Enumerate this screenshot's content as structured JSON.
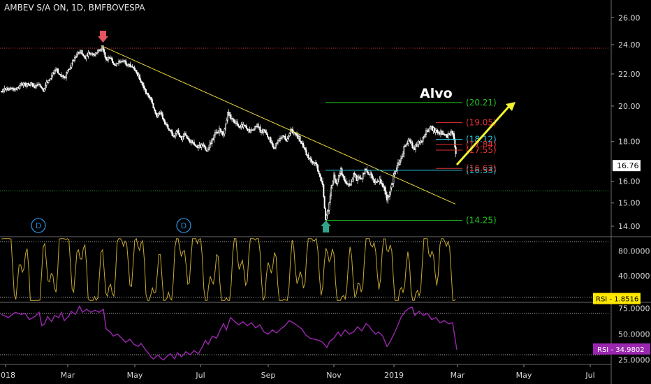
{
  "chart_data": [
    {
      "type": "candlestick",
      "title": "AMBEV S/A ON, 1D, BMFBOVESPA",
      "y_ticks": [
        "26.00",
        "24.00",
        "22.00",
        "20.00",
        "18.00",
        "16.00",
        "15.00",
        "14.00"
      ],
      "y_tick_values": [
        26,
        24,
        22,
        20,
        18,
        16,
        15,
        14
      ],
      "ylim": [
        13.6,
        27.4
      ],
      "last_price_label": "16.76",
      "last_price": 16.76,
      "annotations": {
        "target_text": "Alvo",
        "levels": [
          {
            "label": "(20.21)",
            "value": 20.21,
            "color": "#22c322"
          },
          {
            "label": "(19.05)",
            "value": 19.05,
            "color": "#e03030"
          },
          {
            "label": "(18.12)",
            "value": 18.12,
            "color": "#29c6dc"
          },
          {
            "label": "(17.84)",
            "value": 17.84,
            "color": "#e03030"
          },
          {
            "label": "(17.55)",
            "value": 17.55,
            "color": "#e03030"
          },
          {
            "label": "(16.53)",
            "value": 16.53,
            "color": "#29c6dc"
          },
          {
            "label": "(16.62)",
            "value": 16.62,
            "color": "#e03030"
          },
          {
            "label": "(14.25)",
            "value": 14.25,
            "color": "#22c322"
          }
        ],
        "dividend_markers": [
          "D",
          "D"
        ],
        "high_marker_price": 23.9,
        "low_marker_price": 14.3,
        "resistance_level": 23.75,
        "support_level": 15.55
      },
      "series_close": [
        [
          0,
          20.9
        ],
        [
          6,
          21.0
        ],
        [
          12,
          21.1
        ],
        [
          18,
          20.95
        ],
        [
          24,
          21.2
        ],
        [
          30,
          21.3
        ],
        [
          36,
          21.25
        ],
        [
          42,
          21.35
        ],
        [
          48,
          21.2
        ],
        [
          54,
          21.4
        ],
        [
          60,
          21.0
        ],
        [
          66,
          21.5
        ],
        [
          72,
          21.9
        ],
        [
          78,
          22.3
        ],
        [
          84,
          22.0
        ],
        [
          90,
          21.7
        ],
        [
          96,
          22.3
        ],
        [
          102,
          22.8
        ],
        [
          108,
          23.3
        ],
        [
          114,
          23.5
        ],
        [
          120,
          23.1
        ],
        [
          126,
          23.4
        ],
        [
          132,
          23.2
        ],
        [
          138,
          23.5
        ],
        [
          144,
          23.8
        ],
        [
          150,
          22.9
        ],
        [
          156,
          23.1
        ],
        [
          162,
          22.6
        ],
        [
          168,
          22.8
        ],
        [
          174,
          22.9
        ],
        [
          180,
          22.5
        ],
        [
          186,
          22.6
        ],
        [
          192,
          22.2
        ],
        [
          198,
          21.7
        ],
        [
          204,
          21.0
        ],
        [
          210,
          20.6
        ],
        [
          216,
          20.2
        ],
        [
          222,
          19.4
        ],
        [
          228,
          19.6
        ],
        [
          234,
          19.0
        ],
        [
          240,
          18.7
        ],
        [
          246,
          18.3
        ],
        [
          252,
          18.5
        ],
        [
          258,
          18.2
        ],
        [
          264,
          18.4
        ],
        [
          270,
          18.0
        ],
        [
          276,
          17.9
        ],
        [
          282,
          17.7
        ],
        [
          288,
          17.8
        ],
        [
          294,
          17.6
        ],
        [
          300,
          17.9
        ],
        [
          306,
          18.4
        ],
        [
          312,
          18.6
        ],
        [
          318,
          18.3
        ],
        [
          324,
          19.6
        ],
        [
          330,
          19.2
        ],
        [
          336,
          19.0
        ],
        [
          342,
          18.8
        ],
        [
          348,
          18.9
        ],
        [
          354,
          18.6
        ],
        [
          360,
          18.7
        ],
        [
          366,
          18.9
        ],
        [
          372,
          18.5
        ],
        [
          378,
          18.6
        ],
        [
          384,
          18.1
        ],
        [
          390,
          17.7
        ],
        [
          396,
          18.0
        ],
        [
          402,
          18.3
        ],
        [
          408,
          18.1
        ],
        [
          414,
          18.6
        ],
        [
          420,
          18.4
        ],
        [
          426,
          18.2
        ],
        [
          432,
          17.8
        ],
        [
          438,
          17.2
        ],
        [
          444,
          16.9
        ],
        [
          450,
          16.8
        ],
        [
          456,
          16.3
        ],
        [
          460,
          15.8
        ],
        [
          464,
          14.4
        ],
        [
          468,
          14.6
        ],
        [
          472,
          15.6
        ],
        [
          476,
          16.3
        ],
        [
          480,
          15.9
        ],
        [
          486,
          16.5
        ],
        [
          492,
          16.0
        ],
        [
          498,
          15.8
        ],
        [
          504,
          16.3
        ],
        [
          510,
          16.1
        ],
        [
          516,
          16.2
        ],
        [
          522,
          16.6
        ],
        [
          528,
          16.3
        ],
        [
          534,
          15.9
        ],
        [
          540,
          16.1
        ],
        [
          546,
          15.8
        ],
        [
          552,
          15.1
        ],
        [
          556,
          15.4
        ],
        [
          560,
          16.0
        ],
        [
          564,
          16.5
        ],
        [
          568,
          16.8
        ],
        [
          572,
          17.1
        ],
        [
          578,
          17.8
        ],
        [
          584,
          18.1
        ],
        [
          590,
          17.6
        ],
        [
          596,
          17.9
        ],
        [
          602,
          18.0
        ],
        [
          608,
          18.5
        ],
        [
          614,
          18.8
        ],
        [
          620,
          18.6
        ],
        [
          626,
          18.4
        ],
        [
          632,
          18.5
        ],
        [
          638,
          18.3
        ],
        [
          644,
          18.5
        ],
        [
          648,
          18.2
        ],
        [
          652,
          16.76
        ]
      ]
    },
    {
      "type": "line",
      "label": "RSI",
      "value_label": "1.8516",
      "current": 1.8516,
      "y_ticks": [
        "80.0000",
        "40.0000",
        "0.0000"
      ],
      "y_tick_values": [
        80,
        40,
        0
      ],
      "ylim": [
        -2,
        102
      ],
      "overbought": 95,
      "oversold": 5,
      "line_color": "#c8aa32"
    },
    {
      "type": "line",
      "label": "RSI",
      "value_label": "34.9802",
      "current": 34.9802,
      "y_ticks": [
        "75.0000",
        "50.0000",
        "25.0000"
      ],
      "y_tick_values": [
        75,
        50,
        25
      ],
      "ylim": [
        22,
        80
      ],
      "upper_band": 70,
      "lower_band": 30,
      "line_color": "#9b27b0",
      "series": [
        [
          0,
          69
        ],
        [
          10,
          66
        ],
        [
          20,
          71
        ],
        [
          28,
          69
        ],
        [
          34,
          70
        ],
        [
          40,
          64
        ],
        [
          48,
          67
        ],
        [
          54,
          71
        ],
        [
          58,
          58
        ],
        [
          62,
          60
        ],
        [
          66,
          67
        ],
        [
          72,
          62
        ],
        [
          76,
          68
        ],
        [
          82,
          66
        ],
        [
          86,
          71
        ],
        [
          90,
          63
        ],
        [
          96,
          67
        ],
        [
          100,
          72
        ],
        [
          106,
          69
        ],
        [
          112,
          77
        ],
        [
          116,
          71
        ],
        [
          122,
          74
        ],
        [
          128,
          71
        ],
        [
          134,
          73
        ],
        [
          140,
          71
        ],
        [
          146,
          74
        ],
        [
          150,
          55
        ],
        [
          156,
          52
        ],
        [
          160,
          48
        ],
        [
          166,
          50
        ],
        [
          172,
          46
        ],
        [
          178,
          42
        ],
        [
          184,
          45
        ],
        [
          190,
          40
        ],
        [
          196,
          38
        ],
        [
          200,
          41
        ],
        [
          206,
          35
        ],
        [
          210,
          32
        ],
        [
          214,
          28
        ],
        [
          218,
          26
        ],
        [
          224,
          30
        ],
        [
          228,
          27
        ],
        [
          232,
          25
        ],
        [
          238,
          29
        ],
        [
          242,
          31
        ],
        [
          248,
          26
        ],
        [
          252,
          32
        ],
        [
          258,
          28
        ],
        [
          264,
          33
        ],
        [
          270,
          30
        ],
        [
          276,
          34
        ],
        [
          282,
          31
        ],
        [
          288,
          38
        ],
        [
          292,
          44
        ],
        [
          296,
          40
        ],
        [
          302,
          48
        ],
        [
          308,
          46
        ],
        [
          314,
          55
        ],
        [
          318,
          60
        ],
        [
          322,
          54
        ],
        [
          328,
          66
        ],
        [
          334,
          62
        ],
        [
          340,
          59
        ],
        [
          346,
          62
        ],
        [
          352,
          58
        ],
        [
          358,
          61
        ],
        [
          364,
          56
        ],
        [
          370,
          59
        ],
        [
          376,
          52
        ],
        [
          382,
          50
        ],
        [
          388,
          54
        ],
        [
          394,
          51
        ],
        [
          400,
          55
        ],
        [
          406,
          58
        ],
        [
          412,
          63
        ],
        [
          418,
          61
        ],
        [
          424,
          58
        ],
        [
          430,
          55
        ],
        [
          436,
          49
        ],
        [
          442,
          46
        ],
        [
          448,
          45
        ],
        [
          454,
          44
        ],
        [
          460,
          42
        ],
        [
          466,
          37
        ],
        [
          470,
          43
        ],
        [
          476,
          46
        ],
        [
          482,
          52
        ],
        [
          486,
          48
        ],
        [
          492,
          54
        ],
        [
          498,
          50
        ],
        [
          504,
          52
        ],
        [
          510,
          57
        ],
        [
          516,
          53
        ],
        [
          522,
          60
        ],
        [
          526,
          58
        ],
        [
          530,
          54
        ],
        [
          536,
          50
        ],
        [
          540,
          52
        ],
        [
          546,
          48
        ],
        [
          552,
          38
        ],
        [
          556,
          42
        ],
        [
          562,
          50
        ],
        [
          566,
          56
        ],
        [
          572,
          66
        ],
        [
          578,
          72
        ],
        [
          584,
          75
        ],
        [
          588,
          76
        ],
        [
          592,
          68
        ],
        [
          598,
          72
        ],
        [
          604,
          68
        ],
        [
          610,
          70
        ],
        [
          616,
          64
        ],
        [
          622,
          66
        ],
        [
          628,
          61
        ],
        [
          634,
          63
        ],
        [
          640,
          60
        ],
        [
          646,
          61
        ],
        [
          652,
          34.98
        ]
      ]
    }
  ],
  "x_axis": {
    "labels": [
      "2018",
      "Mar",
      "May",
      "Jul",
      "Sep",
      "Nov",
      "2019",
      "Mar",
      "May",
      "Jul"
    ]
  },
  "colors": {
    "background": "#000000",
    "candle": "#ffffff",
    "trendline": "#e6d53c",
    "arrow": "#f2f230",
    "price_tag_bg": "#ffffff",
    "rsi_tag_bg": "#ffe800",
    "rsi2_tag_bg": "#9b27b0",
    "high_marker": "#e2545e",
    "low_marker": "#30a48b",
    "dividend": "#2a8bd6"
  }
}
